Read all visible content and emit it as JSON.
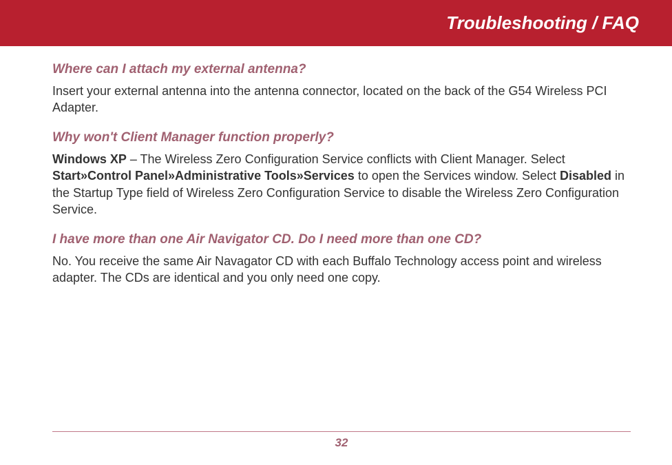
{
  "colors": {
    "header_bg": "#b8202f",
    "header_text": "#ffffff",
    "accent": "#a06070",
    "body_text": "#333333",
    "rule": "#c07888"
  },
  "header": {
    "title": "Troubleshooting / FAQ"
  },
  "faqs": {
    "q1": "Where can I attach my external antenna?",
    "a1": "Insert your external antenna into the antenna connector, located on the back of the G54 Wireless PCI Adapter.",
    "q2": "Why won't Client Manager function properly?",
    "a2_lead_bold": "Windows XP",
    "a2_part1": " – The Wireless Zero Configuration Service conflicts with Client Manager. Select ",
    "a2_bold2": "Start»Control Panel»Administrative Tools»Services",
    "a2_part2": " to open the Services window. Select ",
    "a2_bold3": "Dis­abled",
    "a2_part3": " in the Startup Type field of Wireless Zero Configuration Service to disable the Wireless Zero Configuration Service.",
    "q3": "I have more than one Air Navigator CD. Do I need more than one CD?",
    "a3": "No. You receive the same Air Navagator CD with each Buffalo Technology access point and wire­less adapter. The CDs are identical and you only need one copy."
  },
  "footer": {
    "page_number": "32"
  }
}
